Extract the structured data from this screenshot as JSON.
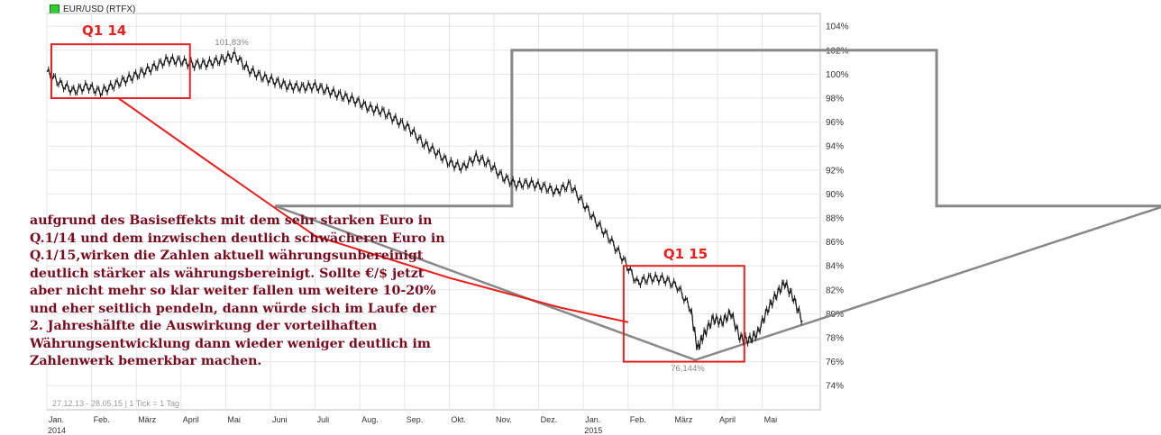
{
  "chart_data": {
    "type": "line",
    "title": "EUR/USD (RTFX)",
    "legend_color": "#33cc33",
    "y_axis_side": "right",
    "y_ticks": [
      "104%",
      "102%",
      "100%",
      "98%",
      "96%",
      "94%",
      "92%",
      "90%",
      "88%",
      "86%",
      "84%",
      "82%",
      "80%",
      "78%",
      "76%",
      "74%"
    ],
    "ylim": [
      72.5,
      105
    ],
    "x_ticks": [
      "Jan.",
      "Feb.",
      "März",
      "April",
      "Mai",
      "Juni",
      "Juli",
      "Aug.",
      "Sep.",
      "Okt.",
      "Nov.",
      "Dez.",
      "Jan.",
      "Feb.",
      "März",
      "April",
      "Mai"
    ],
    "x_years": [
      {
        "label": "2014",
        "month": 0
      },
      {
        "label": "2015",
        "month": 12
      }
    ],
    "x_range_months": [
      0,
      16.9
    ],
    "high_label": "101,83%",
    "high_point": {
      "month": 4.2,
      "value": 101.83
    },
    "low_label": "76,144%",
    "low_point": {
      "month": 14.5,
      "value": 76.144
    },
    "series": [
      {
        "points": [
          [
            0.0,
            100.2
          ],
          [
            0.3,
            99.2
          ],
          [
            0.6,
            98.6
          ],
          [
            0.9,
            99.0
          ],
          [
            1.2,
            98.5
          ],
          [
            1.5,
            99.1
          ],
          [
            1.8,
            99.6
          ],
          [
            2.1,
            100.1
          ],
          [
            2.4,
            100.6
          ],
          [
            2.7,
            101.2
          ],
          [
            3.0,
            101.1
          ],
          [
            3.3,
            100.8
          ],
          [
            3.6,
            100.9
          ],
          [
            3.9,
            101.2
          ],
          [
            4.2,
            101.6
          ],
          [
            4.5,
            100.4
          ],
          [
            4.8,
            99.8
          ],
          [
            5.1,
            99.4
          ],
          [
            5.4,
            99.0
          ],
          [
            5.7,
            98.9
          ],
          [
            6.0,
            99.0
          ],
          [
            6.3,
            98.6
          ],
          [
            6.6,
            98.2
          ],
          [
            6.9,
            97.8
          ],
          [
            7.2,
            97.2
          ],
          [
            7.5,
            96.9
          ],
          [
            7.8,
            96.2
          ],
          [
            8.1,
            95.5
          ],
          [
            8.4,
            94.3
          ],
          [
            8.7,
            93.5
          ],
          [
            9.0,
            92.6
          ],
          [
            9.3,
            92.2
          ],
          [
            9.6,
            93.1
          ],
          [
            9.9,
            92.5
          ],
          [
            10.2,
            91.4
          ],
          [
            10.5,
            90.8
          ],
          [
            10.8,
            90.9
          ],
          [
            11.1,
            90.6
          ],
          [
            11.4,
            90.2
          ],
          [
            11.7,
            90.8
          ],
          [
            12.0,
            89.2
          ],
          [
            12.3,
            87.6
          ],
          [
            12.6,
            86.2
          ],
          [
            12.9,
            84.5
          ],
          [
            13.2,
            82.6
          ],
          [
            13.5,
            83.0
          ],
          [
            13.8,
            82.9
          ],
          [
            14.1,
            82.3
          ],
          [
            14.4,
            80.4
          ],
          [
            14.55,
            77.1
          ],
          [
            14.7,
            78.3
          ],
          [
            14.9,
            79.6
          ],
          [
            15.1,
            79.3
          ],
          [
            15.3,
            80.1
          ],
          [
            15.5,
            78.0
          ],
          [
            15.7,
            77.8
          ],
          [
            15.9,
            78.4
          ],
          [
            16.1,
            80.2
          ],
          [
            16.3,
            81.5
          ],
          [
            16.5,
            82.6
          ],
          [
            16.7,
            81.3
          ],
          [
            16.9,
            79.4
          ]
        ]
      }
    ],
    "overlay_step_line": {
      "color": "#888888",
      "segments": [
        [
          5.1,
          89.0
        ],
        [
          10.4,
          89.0
        ],
        [
          10.4,
          102.0
        ],
        [
          19.9,
          102.0
        ],
        [
          19.9,
          89.0
        ],
        [
          25.0,
          89.0
        ]
      ]
    },
    "overlay_v_line": {
      "color": "#888888",
      "points": [
        [
          5.1,
          89.0
        ],
        [
          14.5,
          76.144
        ],
        [
          25.0,
          89.0
        ]
      ]
    },
    "overlay_red_line": {
      "color": "#e8201f",
      "points": [
        [
          1.6,
          98.0
        ],
        [
          3.5,
          93.0
        ],
        [
          6.0,
          86.5
        ],
        [
          9.0,
          83.0
        ],
        [
          11.5,
          80.5
        ],
        [
          13.0,
          79.3
        ]
      ]
    },
    "boxes": [
      {
        "label": "Q1 14",
        "x0": 0.1,
        "x1": 3.2,
        "y0": 98.0,
        "y1": 102.5
      },
      {
        "label": "Q1 15",
        "x0": 12.9,
        "x1": 15.6,
        "y0": 76.0,
        "y1": 84.0
      }
    ]
  },
  "annotation_text": "aufgrund des Basiseffekts mit dem sehr starken Euro in Q.1/14 und dem inzwischen deutlich schwächeren Euro in Q.1/15,wirken die Zahlen aktuell währungsunbereinigt deutlich stärker als währungsbereinigt. Sollte €/$ jetzt aber nicht mehr so klar weiter fallen um weitere 10-20% und eher seitlich pendeln, dann würde sich im Laufe der 2. Jahreshälfte die Auswirkung der vorteilhaften Währungsentwicklung dann wieder weniger deutlich im Zahlenwerk bemerkbar machen.",
  "footer_text": "27.12.13 - 28.05.15 | 1 Tick = 1 Tag"
}
